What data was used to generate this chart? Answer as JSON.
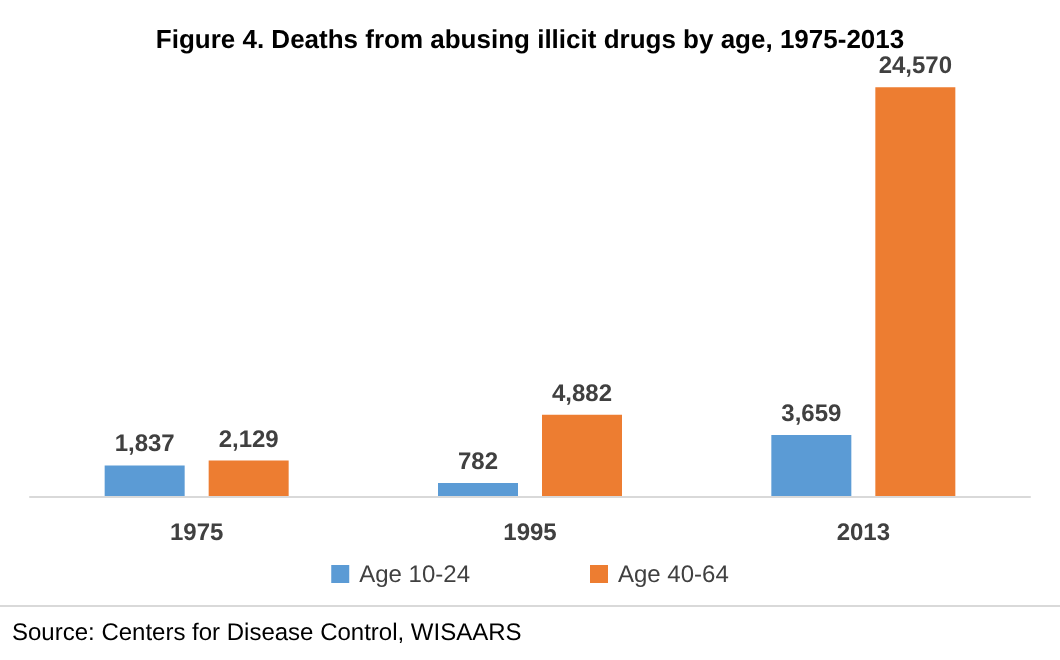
{
  "chart_data": {
    "type": "bar",
    "title": "Figure 4. Deaths from abusing illicit drugs by age, 1975-2013",
    "categories": [
      "1975",
      "1995",
      "2013"
    ],
    "series": [
      {
        "name": "Age 10-24",
        "color": "#5b9bd5",
        "values": [
          1837,
          782,
          3659
        ],
        "value_labels": [
          "1,837",
          "782",
          "3,659"
        ]
      },
      {
        "name": "Age 40-64",
        "color": "#ed7d31",
        "values": [
          2129,
          4882,
          24570
        ],
        "value_labels": [
          "2,129",
          "4,882",
          "24,570"
        ]
      }
    ],
    "grid": false,
    "legend": "bottom",
    "annotations": [
      "Source: Centers for Disease Control, WISAARS"
    ]
  }
}
